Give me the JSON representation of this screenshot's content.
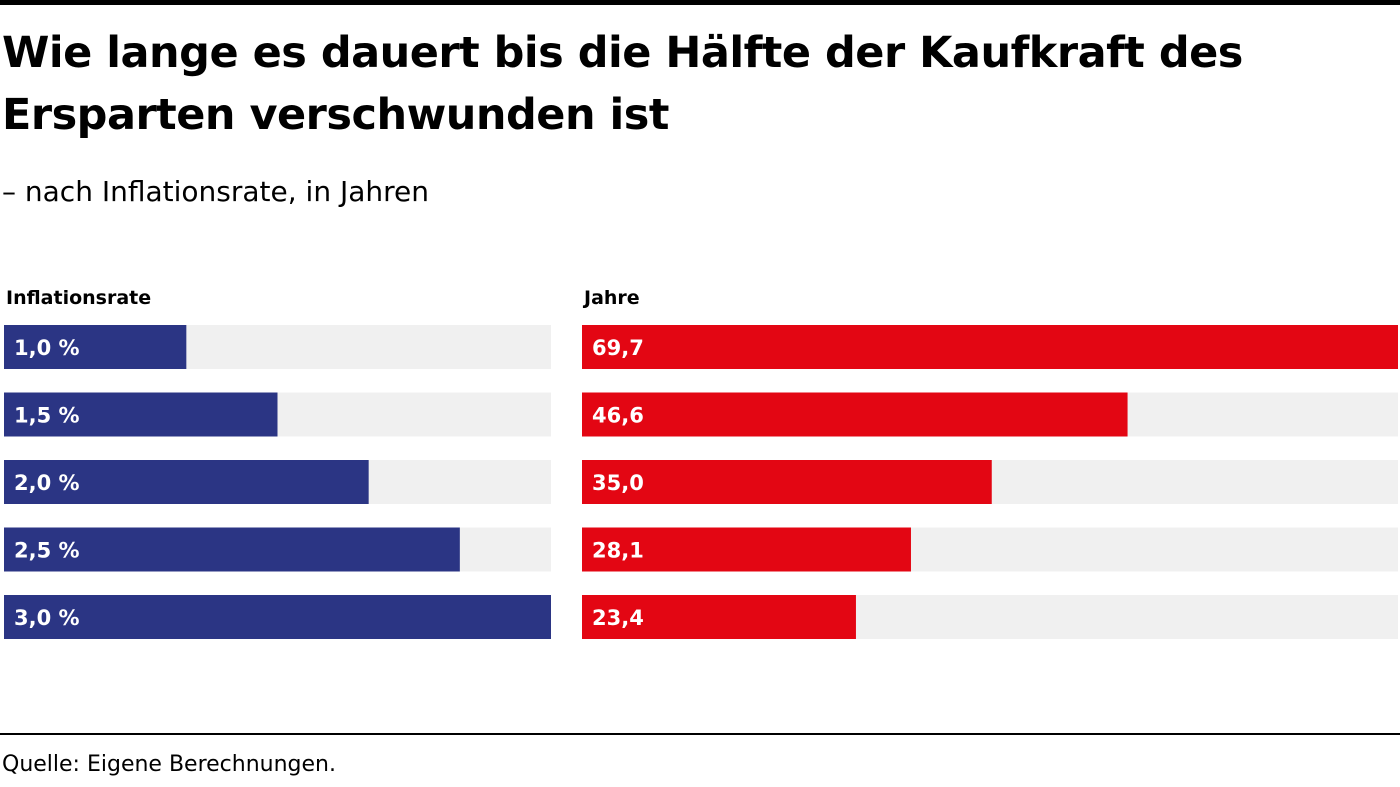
{
  "title": "Wie lange es dauert bis die Hälfte der Kaufkraft des Ersparten verschwunden ist",
  "subtitle": "– nach Inflationsrate, in Jahren",
  "source": "Quelle: Eigene Berechnungen.",
  "colors": {
    "inflation_bar": "#2b3584",
    "years_bar": "#e30613",
    "track": "#f0f0f0"
  },
  "chart_data": [
    {
      "type": "bar",
      "orientation": "horizontal",
      "xlabel": "Inflationsrate",
      "categories": [
        "1,0 %",
        "1,5 %",
        "2,0 %",
        "2,5 %",
        "3,0 %"
      ],
      "values": [
        1.0,
        1.5,
        2.0,
        2.5,
        3.0
      ],
      "value_labels": [
        "1,0 %",
        "1,5 %",
        "2,0 %",
        "2,5 %",
        "3,0 %"
      ],
      "xlim": [
        0,
        3.0
      ],
      "color": "#2b3584"
    },
    {
      "type": "bar",
      "orientation": "horizontal",
      "xlabel": "Jahre",
      "categories": [
        "1,0 %",
        "1,5 %",
        "2,0 %",
        "2,5 %",
        "3,0 %"
      ],
      "values": [
        69.7,
        46.6,
        35.0,
        28.1,
        23.4
      ],
      "value_labels": [
        "69,7",
        "46,6",
        "35,0",
        "28,1",
        "23,4"
      ],
      "xlim": [
        0,
        69.7
      ],
      "color": "#e30613"
    }
  ]
}
